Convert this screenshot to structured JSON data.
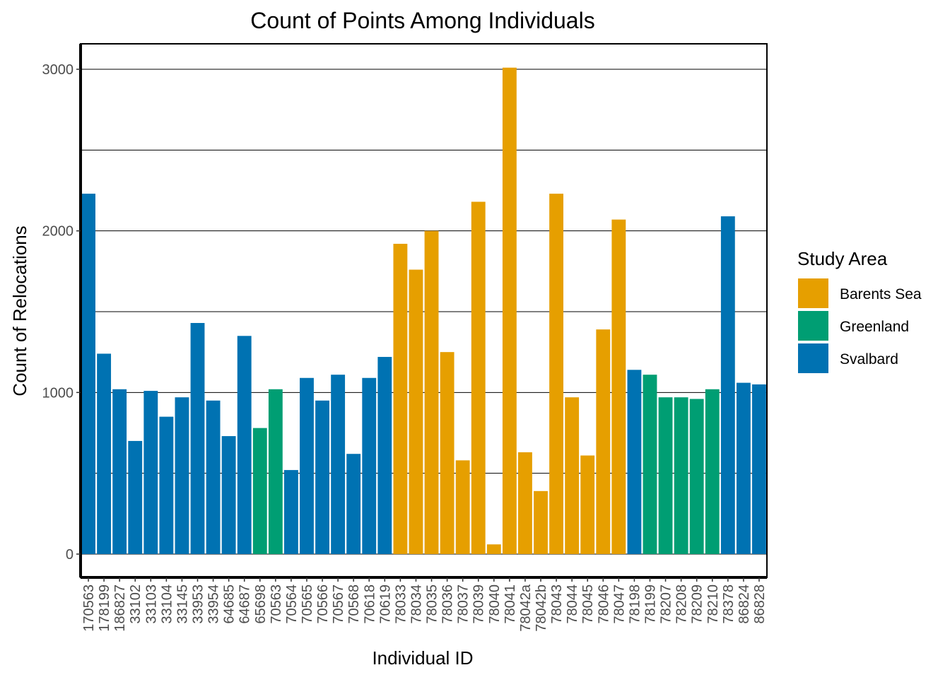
{
  "chart_data": {
    "type": "bar",
    "title": "Count of Points Among Individuals",
    "xlabel": "Individual ID",
    "ylabel": "Count of Relocations",
    "ylim": [
      -140,
      3160
    ],
    "yticks": [
      0,
      1000,
      2000,
      3000
    ],
    "grid": true,
    "legend": {
      "title": "Study Area",
      "placement": "right",
      "entries": [
        {
          "name": "Barents Sea",
          "color": "#E69F00"
        },
        {
          "name": "Greenland",
          "color": "#009E73"
        },
        {
          "name": "Svalbard",
          "color": "#0072B2"
        }
      ]
    },
    "categories": [
      "170563",
      "178199",
      "186827",
      "33102",
      "33103",
      "33104",
      "33145",
      "33953",
      "33954",
      "64685",
      "64687",
      "65698",
      "70563",
      "70564",
      "70565",
      "70566",
      "70567",
      "70568",
      "70618",
      "70619",
      "78033",
      "78034",
      "78035",
      "78036",
      "78037",
      "78039",
      "78040",
      "78041",
      "78042a",
      "78042b",
      "78043",
      "78044",
      "78045",
      "78046",
      "78047",
      "78198",
      "78199",
      "78207",
      "78208",
      "78209",
      "78210",
      "78378",
      "86824",
      "86828"
    ],
    "values": [
      2230,
      1240,
      1020,
      700,
      1010,
      850,
      970,
      1430,
      950,
      730,
      1350,
      780,
      1020,
      520,
      1090,
      950,
      1110,
      620,
      1090,
      1220,
      1920,
      1760,
      2000,
      1250,
      580,
      2180,
      60,
      3010,
      630,
      390,
      2230,
      970,
      610,
      1390,
      2070,
      1140,
      1110,
      970,
      970,
      960,
      1020,
      2090,
      1060,
      1050
    ],
    "groups": [
      "Svalbard",
      "Svalbard",
      "Svalbard",
      "Svalbard",
      "Svalbard",
      "Svalbard",
      "Svalbard",
      "Svalbard",
      "Svalbard",
      "Svalbard",
      "Svalbard",
      "Greenland",
      "Greenland",
      "Svalbard",
      "Svalbard",
      "Svalbard",
      "Svalbard",
      "Svalbard",
      "Svalbard",
      "Svalbard",
      "Barents Sea",
      "Barents Sea",
      "Barents Sea",
      "Barents Sea",
      "Barents Sea",
      "Barents Sea",
      "Barents Sea",
      "Barents Sea",
      "Barents Sea",
      "Barents Sea",
      "Barents Sea",
      "Barents Sea",
      "Barents Sea",
      "Barents Sea",
      "Barents Sea",
      "Svalbard",
      "Greenland",
      "Greenland",
      "Greenland",
      "Greenland",
      "Greenland",
      "Svalbard",
      "Svalbard",
      "Svalbard"
    ]
  }
}
